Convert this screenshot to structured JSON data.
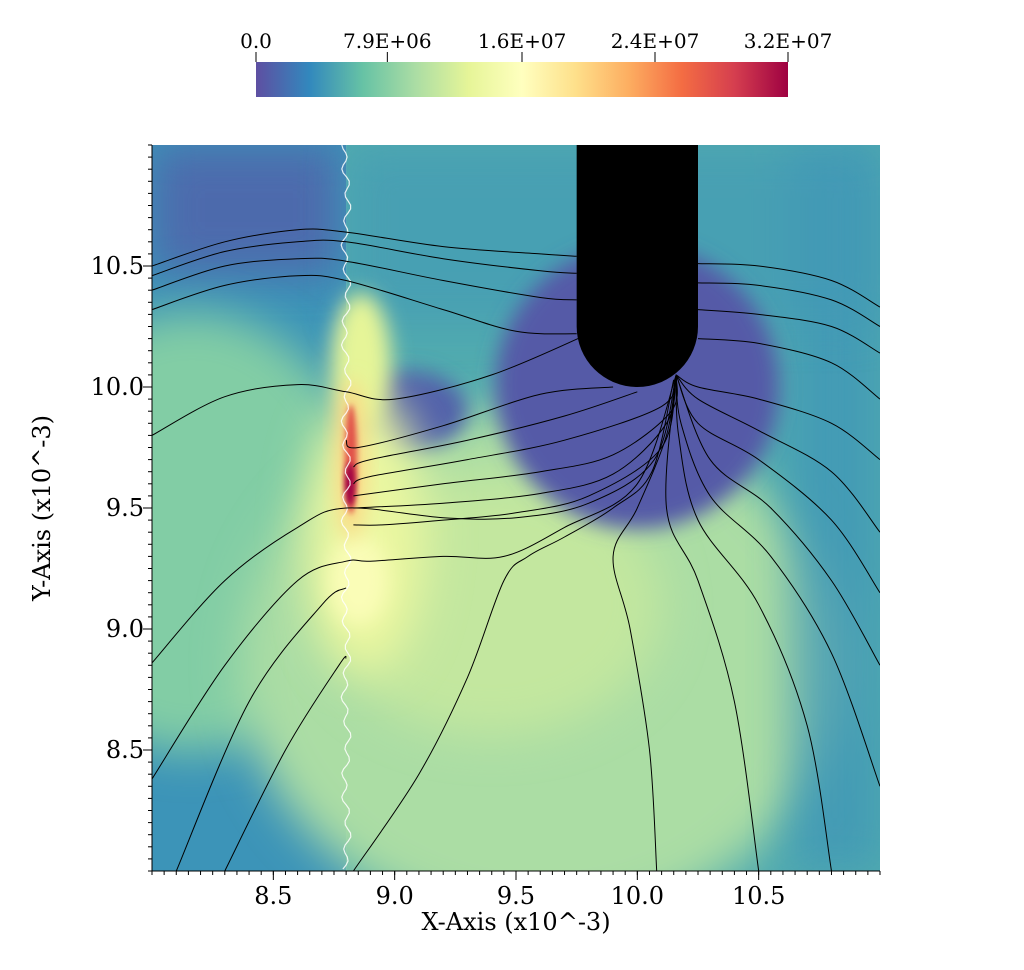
{
  "chart_data": {
    "type": "heatmap",
    "title": "",
    "xlabel": "X-Axis (x10^-3)",
    "ylabel": "Y-Axis (x10^-3)",
    "xlim": [
      8.0,
      11.0
    ],
    "ylim": [
      8.0,
      11.0
    ],
    "xticks": [
      8.5,
      9.0,
      9.5,
      10.0,
      10.5
    ],
    "xtick_labels": [
      "8.5",
      "9.0",
      "9.5",
      "10.0",
      "10.5"
    ],
    "yticks": [
      8.5,
      9.0,
      9.5,
      10.0,
      10.5
    ],
    "ytick_labels": [
      "8.5",
      "9.0",
      "9.5",
      "10.0",
      "10.5"
    ],
    "colorbar": {
      "range": [
        0.0,
        32000000.0
      ],
      "ticks": [
        0.0,
        7900000.0,
        16000000.0,
        24000000.0,
        32000000.0
      ],
      "tick_labels": [
        "0.0",
        "7.9E+06",
        "1.6E+07",
        "2.4E+07",
        "3.2E+07"
      ],
      "colormap": [
        "#5e4fa2",
        "#3288bd",
        "#66c2a5",
        "#abdda4",
        "#e6f598",
        "#ffffbf",
        "#fee08b",
        "#fdae61",
        "#f46d43",
        "#d53e4f",
        "#9e0142"
      ]
    },
    "field": {
      "interface_x": 8.8,
      "obstacle": {
        "center_x": 10.0,
        "center_y": 10.25,
        "radius": 0.25,
        "top_y": 11.0,
        "color": "#000000"
      },
      "low_zone": {
        "center_x": 10.0,
        "center_y": 10.0,
        "radius": 0.75
      },
      "hotspot": {
        "x": 8.82,
        "y": 9.7,
        "value": 32000000.0
      }
    },
    "streamlines": [
      [
        [
          8.0,
          10.5
        ],
        [
          8.3,
          10.6
        ],
        [
          8.6,
          10.65
        ],
        [
          8.8,
          10.64
        ],
        [
          9.2,
          10.58
        ],
        [
          9.6,
          10.55
        ],
        [
          9.75,
          10.54
        ]
      ],
      [
        [
          8.0,
          10.46
        ],
        [
          8.3,
          10.56
        ],
        [
          8.6,
          10.6
        ],
        [
          8.8,
          10.6
        ],
        [
          9.2,
          10.53
        ],
        [
          9.6,
          10.48
        ],
        [
          9.75,
          10.47
        ]
      ],
      [
        [
          8.0,
          10.4
        ],
        [
          8.3,
          10.5
        ],
        [
          8.6,
          10.53
        ],
        [
          8.8,
          10.52
        ],
        [
          9.2,
          10.44
        ],
        [
          9.6,
          10.37
        ],
        [
          9.75,
          10.36
        ]
      ],
      [
        [
          8.0,
          10.32
        ],
        [
          8.3,
          10.42
        ],
        [
          8.6,
          10.46
        ],
        [
          8.8,
          10.44
        ],
        [
          9.2,
          10.32
        ],
        [
          9.5,
          10.23
        ],
        [
          9.75,
          10.22
        ]
      ],
      [
        [
          8.0,
          9.8
        ],
        [
          8.3,
          9.96
        ],
        [
          8.6,
          10.01
        ],
        [
          8.8,
          9.98
        ],
        [
          9.0,
          9.95
        ],
        [
          9.4,
          10.05
        ],
        [
          9.8,
          10.22
        ]
      ],
      [
        [
          8.8,
          9.78
        ],
        [
          8.85,
          9.75
        ],
        [
          9.2,
          9.84
        ],
        [
          9.6,
          9.97
        ],
        [
          9.9,
          10.0
        ]
      ],
      [
        [
          8.83,
          9.67
        ],
        [
          8.9,
          9.7
        ],
        [
          9.3,
          9.78
        ],
        [
          9.7,
          9.88
        ],
        [
          10.0,
          9.98
        ]
      ],
      [
        [
          8.83,
          9.6
        ],
        [
          8.9,
          9.63
        ],
        [
          9.3,
          9.7
        ],
        [
          9.7,
          9.78
        ],
        [
          10.1,
          9.92
        ],
        [
          10.16,
          10.05
        ]
      ],
      [
        [
          8.83,
          9.55
        ],
        [
          9.2,
          9.6
        ],
        [
          9.6,
          9.65
        ],
        [
          9.9,
          9.72
        ],
        [
          10.14,
          9.9
        ],
        [
          10.16,
          10.05
        ]
      ],
      [
        [
          8.83,
          9.5
        ],
        [
          9.2,
          9.52
        ],
        [
          9.6,
          9.56
        ],
        [
          9.9,
          9.64
        ],
        [
          10.12,
          9.85
        ],
        [
          10.16,
          10.05
        ]
      ],
      [
        [
          8.83,
          9.43
        ],
        [
          8.95,
          9.43
        ],
        [
          9.2,
          9.45
        ],
        [
          9.5,
          9.48
        ],
        [
          9.8,
          9.55
        ],
        [
          10.1,
          9.75
        ],
        [
          10.16,
          10.05
        ]
      ],
      [
        [
          8.0,
          8.86
        ],
        [
          8.3,
          9.2
        ],
        [
          8.6,
          9.42
        ],
        [
          8.8,
          9.5
        ],
        [
          9.2,
          9.46
        ],
        [
          9.5,
          9.46
        ],
        [
          9.8,
          9.52
        ],
        [
          10.07,
          9.7
        ],
        [
          10.16,
          10.05
        ]
      ],
      [
        [
          8.0,
          8.38
        ],
        [
          8.3,
          8.85
        ],
        [
          8.6,
          9.2
        ],
        [
          8.8,
          9.28
        ],
        [
          8.9,
          9.28
        ],
        [
          9.2,
          9.3
        ],
        [
          9.45,
          9.3
        ],
        [
          9.7,
          9.42
        ],
        [
          10.0,
          9.6
        ],
        [
          10.16,
          10.05
        ]
      ],
      [
        [
          8.1,
          8.0
        ],
        [
          8.4,
          8.7
        ],
        [
          8.7,
          9.1
        ],
        [
          8.8,
          9.17
        ]
      ],
      [
        [
          8.3,
          8.0
        ],
        [
          8.55,
          8.5
        ],
        [
          8.77,
          8.85
        ],
        [
          8.8,
          8.88
        ]
      ],
      [
        [
          8.83,
          8.0
        ],
        [
          9.1,
          8.4
        ],
        [
          9.3,
          8.8
        ],
        [
          9.45,
          9.2
        ],
        [
          9.55,
          9.3
        ],
        [
          9.7,
          9.38
        ],
        [
          9.9,
          9.5
        ],
        [
          10.06,
          9.65
        ],
        [
          10.15,
          10.03
        ]
      ],
      [
        [
          10.08,
          8.0
        ],
        [
          10.05,
          8.5
        ],
        [
          9.97,
          9.0
        ],
        [
          9.9,
          9.3
        ],
        [
          10.0,
          9.5
        ],
        [
          10.12,
          9.8
        ],
        [
          10.16,
          10.05
        ]
      ],
      [
        [
          10.5,
          8.0
        ],
        [
          10.4,
          8.7
        ],
        [
          10.25,
          9.2
        ],
        [
          10.12,
          9.5
        ],
        [
          10.16,
          10.05
        ]
      ],
      [
        [
          10.8,
          8.0
        ],
        [
          10.7,
          8.6
        ],
        [
          10.5,
          9.1
        ],
        [
          10.25,
          9.45
        ],
        [
          10.17,
          9.8
        ],
        [
          10.16,
          10.05
        ]
      ],
      [
        [
          11.0,
          8.35
        ],
        [
          10.8,
          8.9
        ],
        [
          10.55,
          9.3
        ],
        [
          10.3,
          9.55
        ],
        [
          10.18,
          9.85
        ],
        [
          10.16,
          10.05
        ]
      ],
      [
        [
          11.0,
          8.85
        ],
        [
          10.8,
          9.2
        ],
        [
          10.55,
          9.5
        ],
        [
          10.3,
          9.7
        ],
        [
          10.16,
          10.05
        ]
      ],
      [
        [
          11.0,
          9.15
        ],
        [
          10.8,
          9.45
        ],
        [
          10.5,
          9.7
        ],
        [
          10.25,
          9.85
        ],
        [
          10.16,
          10.05
        ]
      ],
      [
        [
          11.0,
          9.4
        ],
        [
          10.8,
          9.65
        ],
        [
          10.5,
          9.82
        ],
        [
          10.25,
          9.95
        ],
        [
          10.16,
          10.05
        ]
      ],
      [
        [
          11.0,
          9.7
        ],
        [
          10.8,
          9.85
        ],
        [
          10.5,
          9.95
        ],
        [
          10.25,
          10.0
        ],
        [
          10.16,
          10.05
        ]
      ],
      [
        [
          11.0,
          10.33
        ],
        [
          10.8,
          10.44
        ],
        [
          10.5,
          10.5
        ],
        [
          10.25,
          10.51
        ]
      ],
      [
        [
          11.0,
          10.25
        ],
        [
          10.8,
          10.36
        ],
        [
          10.5,
          10.42
        ],
        [
          10.25,
          10.43
        ]
      ],
      [
        [
          11.0,
          10.14
        ],
        [
          10.8,
          10.25
        ],
        [
          10.5,
          10.3
        ],
        [
          10.25,
          10.32
        ]
      ],
      [
        [
          11.0,
          9.95
        ],
        [
          10.8,
          10.1
        ],
        [
          10.5,
          10.18
        ],
        [
          10.25,
          10.2
        ]
      ]
    ]
  }
}
